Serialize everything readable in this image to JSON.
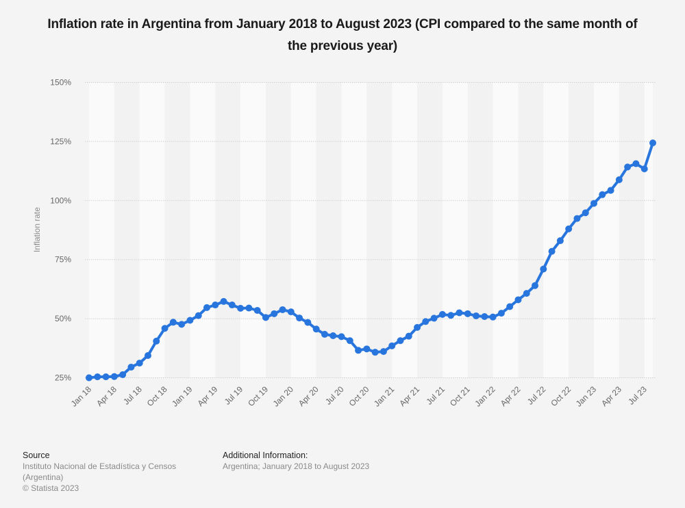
{
  "chart_data": {
    "type": "line",
    "title": "Inflation rate in Argentina from January 2018 to August 2023 (CPI compared to the same month of the previous year)",
    "xlabel": "",
    "ylabel": "Inflation rate",
    "ylim": [
      25,
      150
    ],
    "yticks": [
      25,
      50,
      75,
      100,
      125,
      150
    ],
    "ytick_labels": [
      "25%",
      "50%",
      "75%",
      "100%",
      "125%",
      "150%"
    ],
    "grid": true,
    "legend": "none",
    "series_color": "#2876dd",
    "x": [
      "Jan 18",
      "Feb 18",
      "Mar 18",
      "Apr 18",
      "May 18",
      "Jun 18",
      "Jul 18",
      "Aug 18",
      "Sep 18",
      "Oct 18",
      "Nov 18",
      "Dec 18",
      "Jan 19",
      "Feb 19",
      "Mar 19",
      "Apr 19",
      "May 19",
      "Jun 19",
      "Jul 19",
      "Aug 19",
      "Sep 19",
      "Oct 19",
      "Nov 19",
      "Dec 19",
      "Jan 20",
      "Feb 20",
      "Mar 20",
      "Apr 20",
      "May 20",
      "Jun 20",
      "Jul 20",
      "Aug 20",
      "Sep 20",
      "Oct 20",
      "Nov 20",
      "Dec 20",
      "Jan 21",
      "Feb 21",
      "Mar 21",
      "Apr 21",
      "May 21",
      "Jun 21",
      "Jul 21",
      "Aug 21",
      "Sep 21",
      "Oct 21",
      "Nov 21",
      "Dec 21",
      "Jan 22",
      "Feb 22",
      "Mar 22",
      "Apr 22",
      "May 22",
      "Jun 22",
      "Jul 22",
      "Aug 22",
      "Sep 22",
      "Oct 22",
      "Nov 22",
      "Dec 22",
      "Jan 23",
      "Feb 23",
      "Mar 23",
      "Apr 23",
      "May 23",
      "Jun 23",
      "Jul 23",
      "Aug 23"
    ],
    "xtick_labels": [
      "Jan 18",
      "Apr 18",
      "Jul 18",
      "Oct 18",
      "Jan 19",
      "Apr 19",
      "Jul 19",
      "Oct 19",
      "Jan 20",
      "Apr 20",
      "Jul 20",
      "Oct 20",
      "Jan 21",
      "Apr 21",
      "Jul 21",
      "Oct 21",
      "Jan 22",
      "Apr 22",
      "Jul 22",
      "Oct 22",
      "Jan 23",
      "Apr 23",
      "Jul 23"
    ],
    "series": [
      {
        "name": "Inflation rate",
        "values": [
          25.0,
          25.4,
          25.4,
          25.5,
          26.3,
          29.5,
          31.2,
          34.4,
          40.5,
          45.9,
          48.5,
          47.6,
          49.3,
          51.3,
          54.7,
          55.8,
          57.3,
          55.8,
          54.4,
          54.5,
          53.5,
          50.5,
          52.1,
          53.8,
          52.9,
          50.3,
          48.4,
          45.6,
          43.4,
          42.8,
          42.4,
          40.7,
          36.6,
          37.2,
          35.8,
          36.1,
          38.5,
          40.7,
          42.6,
          46.3,
          48.8,
          50.2,
          51.8,
          51.4,
          52.5,
          52.1,
          51.2,
          50.9,
          50.7,
          52.3,
          55.1,
          58.0,
          60.7,
          64.0,
          71.0,
          78.5,
          83.0,
          88.0,
          92.4,
          94.8,
          98.8,
          102.5,
          104.3,
          108.8,
          114.2,
          115.6,
          113.4,
          124.4
        ]
      }
    ]
  },
  "footer": {
    "source_heading": "Source",
    "source_lines": [
      "Instituto Nacional de Estadística y Censos",
      "(Argentina)",
      "© Statista 2023"
    ],
    "additional_heading": "Additional Information:",
    "additional_text": "Argentina; January 2018 to August 2023"
  }
}
